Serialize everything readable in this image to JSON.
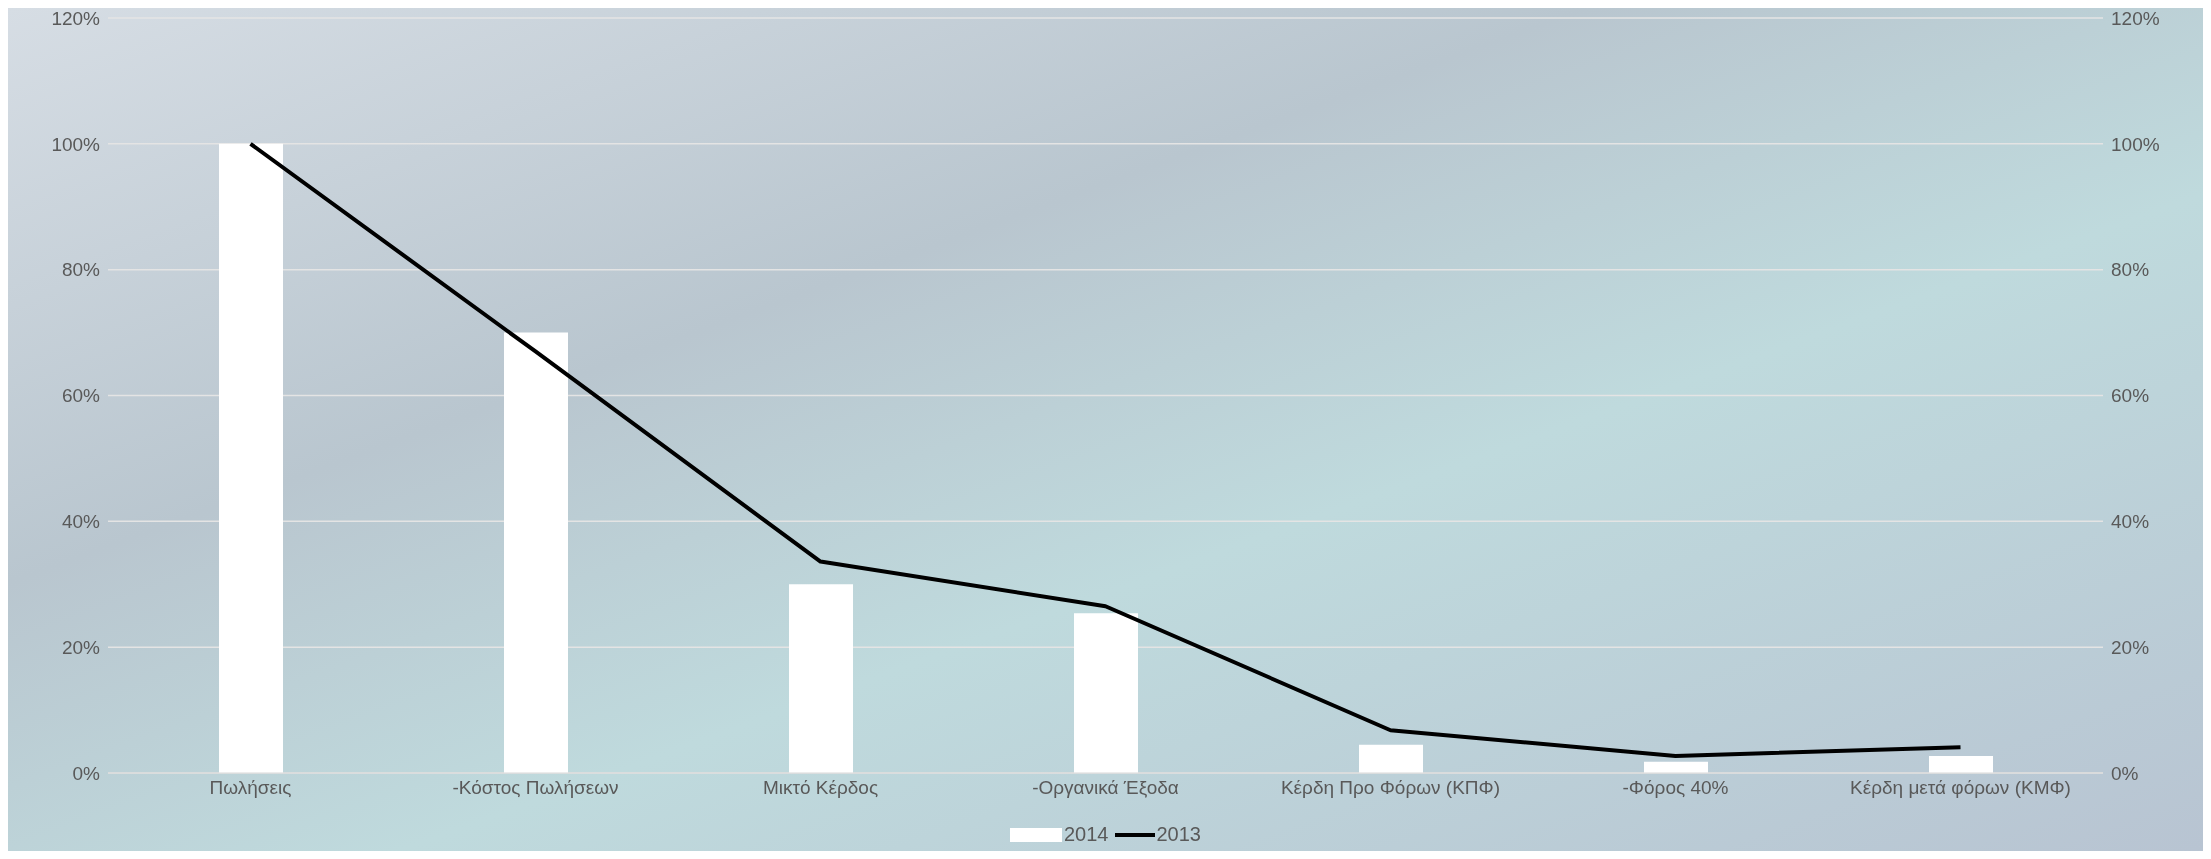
{
  "chart_data": {
    "type": "bar",
    "categories": [
      "Πωλήσεις",
      "-Κόστος Πωλήσεων",
      "Μικτό Κέρδος",
      "-Οργανικά Έξοδα",
      "Κέρδη Προ Φόρων (ΚΠΦ)",
      "-Φόρος 40%",
      "Κέρδη μετά φόρων (ΚΜΦ)"
    ],
    "series": [
      {
        "name": "2014",
        "color": "#ffffff",
        "values": [
          100,
          70,
          30,
          25.4,
          4.5,
          1.8,
          2.7
        ]
      },
      {
        "name": "2013",
        "type": "line",
        "color": "#000000",
        "values": [
          100,
          67,
          33.6,
          26.5,
          6.8,
          2.7,
          4.1
        ]
      }
    ],
    "ylim": [
      0,
      120
    ],
    "yticks": [
      {
        "value": 0,
        "label": "0%"
      },
      {
        "value": 20,
        "label": "20%"
      },
      {
        "value": 40,
        "label": "40%"
      },
      {
        "value": 60,
        "label": "60%"
      },
      {
        "value": 80,
        "label": "80%"
      },
      {
        "value": 100,
        "label": "100%"
      },
      {
        "value": 120,
        "label": "120%"
      }
    ],
    "y2lim": [
      0,
      120
    ],
    "y2ticks": [
      {
        "value": 0,
        "label": "0%"
      },
      {
        "value": 20,
        "label": "20%"
      },
      {
        "value": 40,
        "label": "40%"
      },
      {
        "value": 60,
        "label": "60%"
      },
      {
        "value": 80,
        "label": "80%"
      },
      {
        "value": 100,
        "label": "100%"
      },
      {
        "value": 120,
        "label": "120%"
      }
    ],
    "grid": "y",
    "legend": "bottom",
    "marker": "none",
    "line_style": "solid"
  }
}
